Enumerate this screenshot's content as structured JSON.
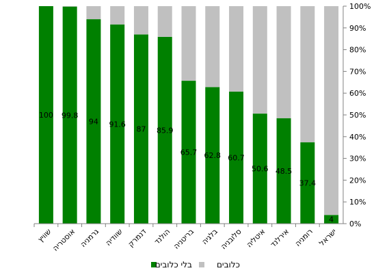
{
  "chart_data": {
    "type": "bar",
    "stacked": "percent",
    "categories": [
      "שוויץ",
      "אוסטריה",
      "גרמניה",
      "שוודיה",
      "דנמרק",
      "הולנד",
      "בריטניה",
      "בלגיה",
      "סלובניה",
      "איטליה",
      "אירלנד",
      "רומניה",
      "ישראל"
    ],
    "series": [
      {
        "name": "בלי כלובים",
        "color": "#008000",
        "values": [
          100,
          99.8,
          94,
          91.6,
          87,
          85.9,
          65.7,
          62.8,
          60.7,
          50.6,
          48.5,
          37.4,
          4
        ]
      },
      {
        "name": "כלובים",
        "color": "#c0c0c0",
        "values": [
          0,
          0.2,
          6,
          8.4,
          13,
          14.1,
          34.3,
          37.2,
          39.3,
          49.4,
          51.5,
          62.6,
          96
        ]
      }
    ],
    "data_labels": [
      "100",
      "99.8",
      "94",
      "91.6",
      "87",
      "85.9",
      "65.7",
      "62.8",
      "60.7",
      "50.6",
      "48.5",
      "37.4",
      "4"
    ],
    "y_ticks": [
      "0%",
      "10%",
      "20%",
      "30%",
      "40%",
      "50%",
      "60%",
      "70%",
      "80%",
      "90%",
      "100%"
    ],
    "ylim": [
      0,
      100
    ],
    "y_axis_side": "right",
    "grid": false,
    "legend_position": "bottom",
    "title": "",
    "xlabel": "",
    "ylabel": ""
  }
}
